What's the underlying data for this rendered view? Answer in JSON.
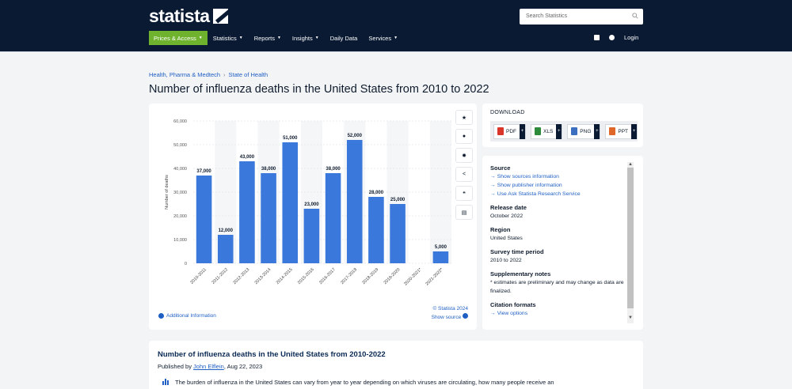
{
  "header": {
    "search_placeholder": "Search Statistics",
    "nav": [
      "Prices & Access",
      "Statistics",
      "Reports",
      "Insights",
      "Daily Data",
      "Services"
    ],
    "login": "Login"
  },
  "breadcrumb": [
    "Health, Pharma & Medtech",
    "State of Health"
  ],
  "page_title": "Number of influenza deaths in the United States from 2010 to 2022",
  "tools": [
    "star-icon",
    "bell-icon",
    "gear-icon",
    "share-icon",
    "quote-icon",
    "print-icon"
  ],
  "chart_footer": {
    "additional_info": "Additional Information",
    "copyright": "© Statista 2024",
    "show_source": "Show source"
  },
  "download": {
    "title": "DOWNLOAD",
    "formats": [
      {
        "label": "PDF",
        "color": "#d9352b"
      },
      {
        "label": "XLS",
        "color": "#2e8b3c"
      },
      {
        "label": "PNG",
        "color": "#3d6fc0"
      },
      {
        "label": "PPT",
        "color": "#e0672a"
      }
    ]
  },
  "details": {
    "source_h": "Source",
    "source_links": [
      "Show sources information",
      "Show publisher information",
      "Use Ask Statista Research Service"
    ],
    "release_h": "Release date",
    "release": "October 2022",
    "region_h": "Region",
    "region": "United States",
    "period_h": "Survey time period",
    "period": "2010 to 2022",
    "notes_h": "Supplementary notes",
    "notes": "* estimates are preliminary and may change as data are finalized.",
    "citation_h": "Citation formats",
    "citation_link": "View options"
  },
  "description": {
    "title": "Number of influenza deaths in the United States from 2010-2022",
    "published_prefix": "Published by ",
    "author": "John Elflein",
    "date": ", Aug 22, 2023",
    "text": "The burden of influenza in the United States can vary from year to year depending on which viruses are circulating, how many people receive an"
  },
  "colors": {
    "header": "#0a1a33",
    "bar": "#3a78db",
    "accent": "#6fb22e",
    "link": "#1f5fc4"
  },
  "chart_data": {
    "type": "bar",
    "categories": [
      "2010-2011",
      "2011-2012",
      "2012-2013",
      "2013-2014",
      "2014-2015",
      "2015-2016",
      "2016-2017",
      "2017-2018",
      "2018-2019",
      "2019-2020",
      "2020-2021*",
      "2021-2022*"
    ],
    "values": [
      37000,
      12000,
      43000,
      38000,
      51000,
      23000,
      38000,
      52000,
      28000,
      25000,
      0,
      5000
    ],
    "value_labels": [
      "37,000",
      "12,000",
      "43,000",
      "38,000",
      "51,000",
      "23,000",
      "38,000",
      "52,000",
      "28,000",
      "25,000",
      "",
      "5,000"
    ],
    "ylabel": "Number of deaths",
    "ylim": [
      0,
      60000
    ],
    "yticks": [
      0,
      10000,
      20000,
      30000,
      40000,
      50000,
      60000
    ],
    "ytick_labels": [
      "0",
      "10,000",
      "20,000",
      "30,000",
      "40,000",
      "50,000",
      "60,000"
    ],
    "grid": true
  }
}
